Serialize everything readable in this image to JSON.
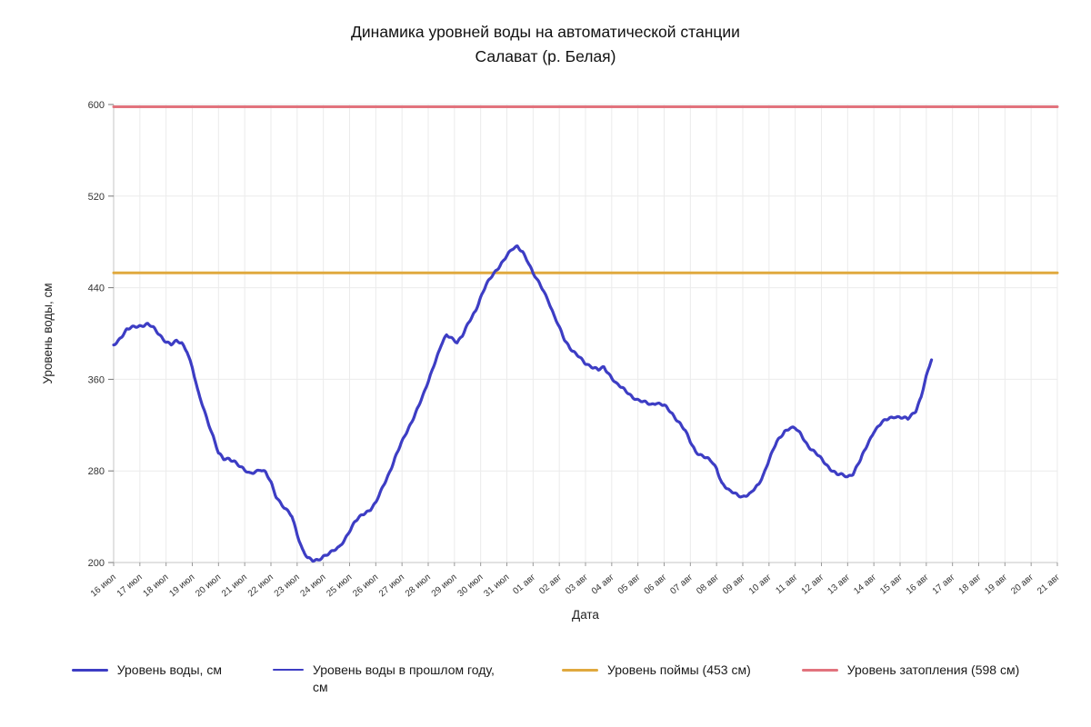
{
  "title": {
    "line1": "Динамика уровней воды на автоматической станции",
    "line2": "Салават (р. Белая)"
  },
  "colors": {
    "grid": "#ebebeb",
    "axis": "#c4c4c4",
    "tick_text": "#333333",
    "series_blue": "#3d3dc4",
    "floodplain_yellow": "#e0a93e",
    "flood_red": "#e2737d"
  },
  "chart_data": {
    "type": "line",
    "title": "Динамика уровней воды на автоматической станции Салават (р. Белая)",
    "xlabel": "Дата",
    "ylabel": "Уровень воды, см",
    "ylim": [
      200,
      600
    ],
    "yticks": [
      200,
      280,
      360,
      440,
      520,
      600
    ],
    "grid": true,
    "legend_position": "bottom",
    "x_tick_labels": [
      "16 июл",
      "17 июл",
      "18 июл",
      "19 июл",
      "20 июл",
      "21 июл",
      "22 июл",
      "23 июл",
      "24 июл",
      "25 июл",
      "26 июл",
      "27 июл",
      "28 июл",
      "29 июл",
      "30 июл",
      "31 июл",
      "01 авг",
      "02 авг",
      "03 авг",
      "04 авг",
      "05 авг",
      "06 авг",
      "07 авг",
      "08 авг",
      "09 авг",
      "10 авг",
      "11 авг",
      "12 авг",
      "13 авг",
      "14 авг",
      "15 авг",
      "16 авг",
      "17 авг",
      "18 авг",
      "19 авг",
      "20 авг",
      "21 авг"
    ],
    "series": [
      {
        "name": "Уровень воды, см",
        "type": "line",
        "color": "#3d3dc4",
        "stroke_width": 3.2,
        "x": [
          0,
          0.2,
          0.5,
          0.8,
          1.0,
          1.3,
          1.5,
          1.8,
          2.0,
          2.2,
          2.4,
          2.6,
          2.8,
          3.0,
          3.2,
          3.5,
          3.8,
          4.0,
          4.2,
          4.4,
          4.6,
          4.8,
          5.0,
          5.2,
          5.4,
          5.6,
          5.8,
          6.0,
          6.2,
          6.5,
          6.8,
          7.0,
          7.2,
          7.4,
          7.6,
          7.8,
          8.0,
          8.2,
          8.4,
          8.6,
          8.8,
          9.0,
          9.2,
          9.5,
          9.8,
          10.0,
          10.2,
          10.5,
          10.8,
          11.0,
          11.2,
          11.5,
          11.8,
          12.0,
          12.2,
          12.5,
          12.7,
          12.9,
          13.1,
          13.3,
          13.5,
          13.8,
          14.0,
          14.2,
          14.5,
          14.8,
          15.0,
          15.2,
          15.4,
          15.6,
          15.8,
          16.0,
          16.2,
          16.4,
          16.6,
          16.8,
          17.0,
          17.2,
          17.5,
          17.8,
          18.0,
          18.2,
          18.5,
          18.7,
          19.0,
          19.2,
          19.5,
          19.8,
          20.0,
          20.2,
          20.5,
          20.7,
          21.0,
          21.3,
          21.6,
          21.8,
          22.0,
          22.2,
          22.5,
          22.8,
          23.0,
          23.2,
          23.5,
          23.8,
          24.0,
          24.3,
          24.6,
          24.8,
          25.0,
          25.3,
          25.6,
          25.8,
          26.0,
          26.2,
          26.5,
          26.8,
          27.0,
          27.3,
          27.6,
          27.8,
          28.0,
          28.2,
          28.5,
          28.8,
          29.0,
          29.3,
          29.6,
          29.8,
          30.0,
          30.3,
          30.6,
          30.8,
          31.0,
          31.2
        ],
        "values": [
          390,
          395,
          403,
          406,
          407,
          408,
          405,
          398,
          393,
          390,
          393,
          392,
          385,
          370,
          350,
          330,
          310,
          295,
          290,
          291,
          289,
          284,
          280,
          278,
          280,
          281,
          278,
          270,
          258,
          248,
          240,
          225,
          212,
          204,
          201,
          202,
          206,
          208,
          210,
          213,
          220,
          228,
          235,
          242,
          247,
          252,
          262,
          278,
          295,
          305,
          315,
          330,
          345,
          358,
          372,
          390,
          398,
          396,
          393,
          398,
          407,
          420,
          432,
          442,
          452,
          462,
          468,
          473,
          476,
          472,
          463,
          452,
          445,
          438,
          428,
          415,
          405,
          395,
          385,
          378,
          374,
          372,
          368,
          370,
          362,
          356,
          350,
          345,
          342,
          340,
          338,
          340,
          337,
          330,
          322,
          315,
          305,
          297,
          293,
          288,
          282,
          270,
          262,
          259,
          258,
          260,
          268,
          278,
          290,
          305,
          315,
          318,
          317,
          312,
          302,
          295,
          290,
          283,
          277,
          276,
          275,
          278,
          290,
          305,
          315,
          322,
          326,
          328,
          327,
          325,
          333,
          345,
          362,
          377
        ]
      },
      {
        "name": "Уровень воды в прошлом году, см",
        "type": "line",
        "color": "#3d3dc4",
        "stroke_width": 1.5,
        "x": [],
        "values": []
      },
      {
        "name": "Уровень поймы (453 см)",
        "type": "hline",
        "color": "#e0a93e",
        "stroke_width": 3,
        "value": 453
      },
      {
        "name": "Уровень затопления (598 см)",
        "type": "hline",
        "color": "#e2737d",
        "stroke_width": 3,
        "value": 598
      }
    ]
  }
}
